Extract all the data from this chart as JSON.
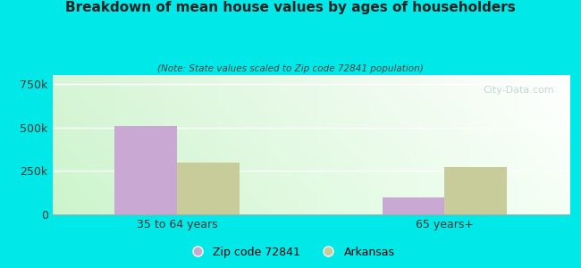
{
  "title": "Breakdown of mean house values by ages of householders",
  "subtitle": "(Note: State values scaled to Zip code 72841 population)",
  "categories": [
    "35 to 64 years",
    "65 years+"
  ],
  "zip_values": [
    510000,
    100000
  ],
  "state_values": [
    295000,
    270000
  ],
  "zip_color": "#c9a8d4",
  "state_color": "#c8cc9a",
  "ylim": [
    0,
    800000
  ],
  "yticks": [
    0,
    250000,
    500000,
    750000
  ],
  "ytick_labels": [
    "0",
    "250k",
    "500k",
    "750k"
  ],
  "background_color": "#00e8e8",
  "legend_labels": [
    "Zip code 72841",
    "Arkansas"
  ],
  "watermark": "City-Data.com",
  "bar_width": 0.35,
  "group_positions": [
    1.0,
    2.5
  ]
}
